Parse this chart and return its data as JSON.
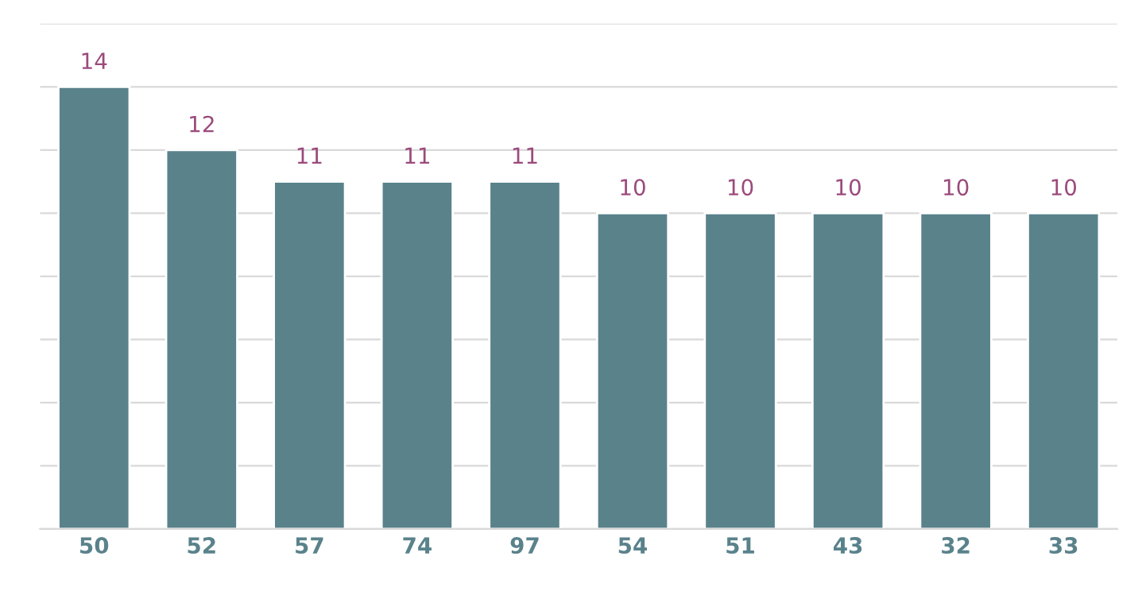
{
  "chart_data": {
    "type": "bar",
    "categories": [
      "50",
      "52",
      "57",
      "74",
      "97",
      "54",
      "51",
      "43",
      "32",
      "33"
    ],
    "values": [
      14,
      12,
      11,
      11,
      11,
      10,
      10,
      10,
      10,
      10
    ],
    "color": "#5a828b",
    "ylim": [
      0,
      16
    ],
    "yticks": [
      {
        "value": 0,
        "label": null
      },
      {
        "value": 2,
        "label": null
      },
      {
        "value": 4,
        "label": null
      },
      {
        "value": 6,
        "label": null
      },
      {
        "value": 8,
        "label": null
      },
      {
        "value": 10,
        "label": null
      },
      {
        "value": 12,
        "label": null
      },
      {
        "value": 14,
        "label": null
      },
      {
        "value": 16,
        "label": null
      }
    ],
    "tick_labels": "x",
    "grid": "y",
    "data_labels": true
  }
}
